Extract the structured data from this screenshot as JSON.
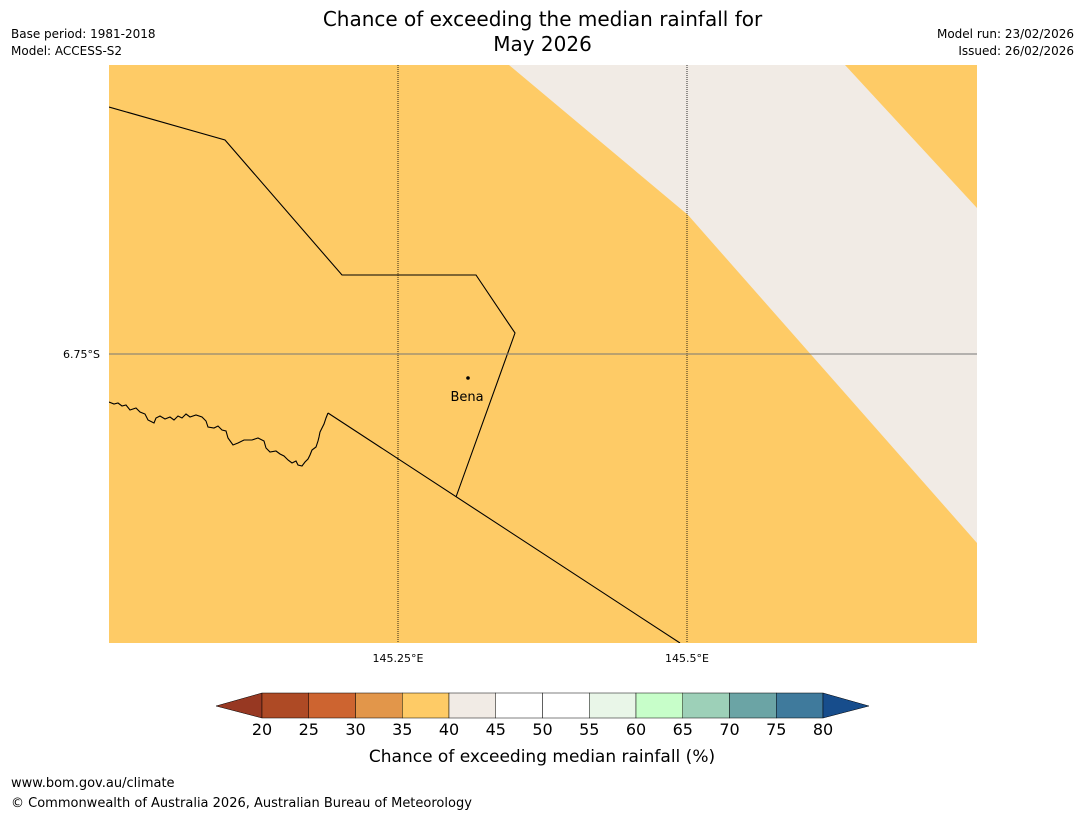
{
  "title_line1": "Chance of exceeding the median rainfall for",
  "title_line2": "May 2026",
  "meta_left": [
    "Base period: 1981-2018",
    "Model: ACCESS-S2"
  ],
  "meta_right": [
    "Model run: 23/02/2026",
    "Issued: 26/02/2026"
  ],
  "map": {
    "lat_label": "6.75°S",
    "lon_labels": [
      "145.25°E",
      "145.5°E"
    ],
    "town": "Bena",
    "fill_main": "#fecb66",
    "fill_secondary": "#f1ebe5",
    "main_category": "35-40",
    "secondary_category": "40-45"
  },
  "colorbar": {
    "label": "Chance of exceeding median rainfall (%)",
    "ticks": [
      "20",
      "25",
      "30",
      "35",
      "40",
      "45",
      "50",
      "55",
      "60",
      "65",
      "70",
      "75",
      "80"
    ],
    "under_color": "#973822",
    "over_color": "#174d8c",
    "colors": [
      "#ae4a25",
      "#cd6430",
      "#e2964a",
      "#fecb66",
      "#f1ebe5",
      "#ffffff",
      "#ffffff",
      "#e9f6e8",
      "#c7fec9",
      "#9dd0b8",
      "#6ba4a5",
      "#3f7a9c"
    ]
  },
  "footer": {
    "url": "www.bom.gov.au/climate",
    "copyright": "© Commonwealth of Australia 2026, Australian Bureau of Meteorology"
  }
}
